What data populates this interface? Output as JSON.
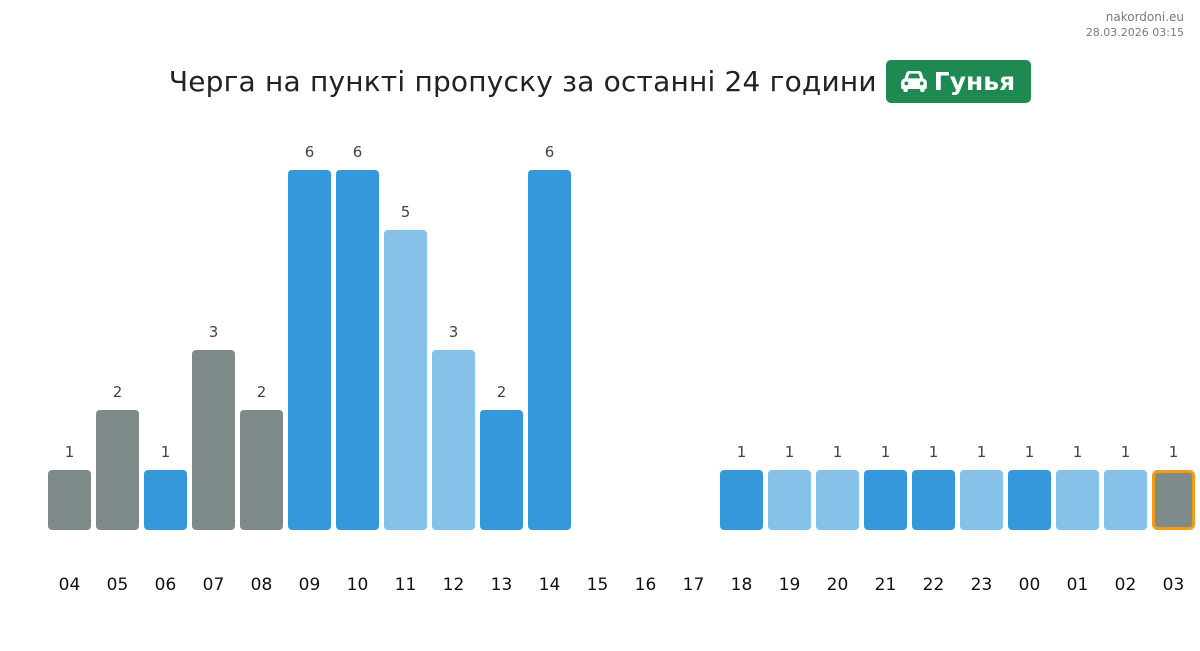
{
  "site": {
    "domain": "nakordoni.eu",
    "timestamp": "28.03.2026 03:15"
  },
  "header": {
    "title": "Черга на пункті пропуску за останні 24 години",
    "badge_label": "Гунья",
    "badge_icon": "car-icon",
    "badge_color": "#1e8a51"
  },
  "colors": {
    "gray": "#7f8a8a",
    "blue": "#3498db",
    "light_blue": "#85c1e9",
    "highlight_border": "#f39c12"
  },
  "chart_data": {
    "type": "bar",
    "categories": [
      "04",
      "05",
      "06",
      "07",
      "08",
      "09",
      "10",
      "11",
      "12",
      "13",
      "14",
      "15",
      "16",
      "17",
      "18",
      "19",
      "20",
      "21",
      "22",
      "23",
      "00",
      "01",
      "02",
      "03"
    ],
    "values": [
      1,
      2,
      1,
      3,
      2,
      6,
      6,
      5,
      3,
      2,
      6,
      null,
      null,
      null,
      1,
      1,
      1,
      1,
      1,
      1,
      1,
      1,
      1,
      1
    ],
    "bar_colors": [
      "gray",
      "gray",
      "blue",
      "gray",
      "gray",
      "blue",
      "blue",
      "light_blue",
      "light_blue",
      "blue",
      "blue",
      null,
      null,
      null,
      "blue",
      "light_blue",
      "light_blue",
      "blue",
      "blue",
      "light_blue",
      "blue",
      "light_blue",
      "light_blue",
      "gray"
    ],
    "highlighted_index": 23,
    "title": "Черга на пункті пропуску за останні 24 години",
    "xlabel": "",
    "ylabel": "",
    "ylim": [
      0,
      6
    ],
    "grid": false,
    "legend": "none"
  }
}
